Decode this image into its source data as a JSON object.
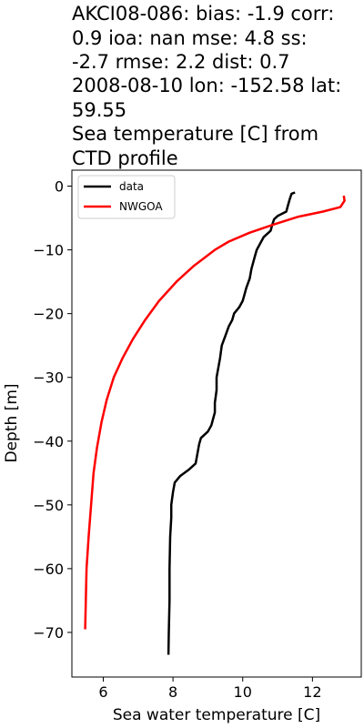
{
  "chart_data": {
    "type": "line",
    "title_lines": [
      "AKCI08-086: bias: -1.9  corr:",
      "0.9  ioa: nan  mse: 4.8  ss:",
      "-2.7  rmse: 2.2  dist: 0.7",
      "2008-08-10 lon: -152.58 lat:",
      "59.55",
      "Sea temperature [C] from",
      "CTD profile"
    ],
    "xlabel": "Sea water temperature [C]",
    "ylabel": "Depth [m]",
    "xlim": [
      5.1,
      13.4
    ],
    "ylim": [
      -77.0,
      2.5
    ],
    "xticks": [
      6,
      8,
      10,
      12
    ],
    "xtick_labels": [
      "6",
      "8",
      "10",
      "12"
    ],
    "yticks": [
      0,
      -10,
      -20,
      -30,
      -40,
      -50,
      -60,
      -70
    ],
    "ytick_labels": [
      "0",
      "−10",
      "−20",
      "−30",
      "−40",
      "−50",
      "−60",
      "−70"
    ],
    "grid": false,
    "legend_position": "top-left",
    "series": [
      {
        "name": "data",
        "color": "#000000",
        "points": [
          [
            11.5,
            -1.0
          ],
          [
            11.4,
            -1.2
          ],
          [
            11.35,
            -2.0
          ],
          [
            11.3,
            -3.0
          ],
          [
            11.25,
            -4.0
          ],
          [
            11.0,
            -4.7
          ],
          [
            10.9,
            -5.2
          ],
          [
            10.85,
            -6.0
          ],
          [
            10.8,
            -7.0
          ],
          [
            10.6,
            -8.0
          ],
          [
            10.5,
            -9.0
          ],
          [
            10.4,
            -10.0
          ],
          [
            10.35,
            -11.0
          ],
          [
            10.3,
            -12.0
          ],
          [
            10.25,
            -13.0
          ],
          [
            10.2,
            -14.5
          ],
          [
            10.1,
            -16.0
          ],
          [
            10.05,
            -17.0
          ],
          [
            10.0,
            -18.0
          ],
          [
            9.9,
            -19.0
          ],
          [
            9.75,
            -20.0
          ],
          [
            9.7,
            -21.0
          ],
          [
            9.6,
            -22.0
          ],
          [
            9.5,
            -23.5
          ],
          [
            9.4,
            -25.0
          ],
          [
            9.35,
            -27.0
          ],
          [
            9.3,
            -28.5
          ],
          [
            9.25,
            -30.0
          ],
          [
            9.25,
            -32.0
          ],
          [
            9.2,
            -34.0
          ],
          [
            9.2,
            -35.5
          ],
          [
            9.15,
            -36.5
          ],
          [
            9.1,
            -37.5
          ],
          [
            9.0,
            -38.5
          ],
          [
            8.8,
            -39.5
          ],
          [
            8.75,
            -40.5
          ],
          [
            8.7,
            -42.0
          ],
          [
            8.65,
            -43.5
          ],
          [
            8.45,
            -44.5
          ],
          [
            8.2,
            -45.5
          ],
          [
            8.05,
            -46.5
          ],
          [
            8.0,
            -48.0
          ],
          [
            7.95,
            -50.0
          ],
          [
            7.95,
            -52.0
          ],
          [
            7.92,
            -55.0
          ],
          [
            7.9,
            -60.0
          ],
          [
            7.9,
            -65.0
          ],
          [
            7.88,
            -70.0
          ],
          [
            7.87,
            -73.5
          ]
        ]
      },
      {
        "name": "NWGOA",
        "color": "#ff0000",
        "points": [
          [
            12.9,
            -1.5
          ],
          [
            12.92,
            -2.3
          ],
          [
            12.8,
            -3.3
          ],
          [
            12.3,
            -4.0
          ],
          [
            11.6,
            -4.8
          ],
          [
            10.9,
            -6.0
          ],
          [
            10.2,
            -7.3
          ],
          [
            9.6,
            -8.7
          ],
          [
            9.2,
            -10.0
          ],
          [
            8.6,
            -12.5
          ],
          [
            8.1,
            -15.0
          ],
          [
            7.6,
            -18.0
          ],
          [
            7.2,
            -21.0
          ],
          [
            6.85,
            -24.0
          ],
          [
            6.55,
            -27.0
          ],
          [
            6.3,
            -30.0
          ],
          [
            6.1,
            -33.5
          ],
          [
            5.95,
            -37.0
          ],
          [
            5.82,
            -41.0
          ],
          [
            5.72,
            -45.0
          ],
          [
            5.65,
            -50.0
          ],
          [
            5.58,
            -55.0
          ],
          [
            5.52,
            -60.0
          ],
          [
            5.5,
            -65.0
          ],
          [
            5.48,
            -69.5
          ]
        ]
      }
    ]
  }
}
